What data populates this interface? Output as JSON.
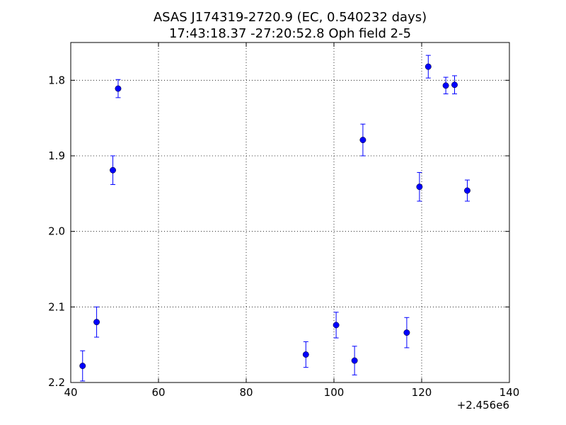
{
  "chart_data": {
    "type": "scatter",
    "title_line1": "ASAS J174319-2720.9 (EC, 0.540232 days)",
    "title_line2": "17:43:18.37 -27:20:52.8 Oph field 2-5",
    "xlabel": "",
    "ylabel": "",
    "x_offset_label": "+2.456e6",
    "xlim": [
      40,
      140
    ],
    "ylim": [
      1.75,
      2.2
    ],
    "y_inverted": true,
    "grid": true,
    "x_ticks": [
      40,
      60,
      80,
      100,
      120,
      140
    ],
    "x_tick_labels": [
      "40",
      "60",
      "80",
      "100",
      "120",
      "140"
    ],
    "y_ticks": [
      1.8,
      1.9,
      2.0,
      2.1,
      2.2
    ],
    "y_tick_labels": [
      "1.8",
      "1.9",
      "2.0",
      "2.1",
      "2.2"
    ],
    "marker_color": "#0000ff",
    "points": [
      {
        "x": 42.7,
        "y": 2.178,
        "err": 0.02
      },
      {
        "x": 45.9,
        "y": 2.12,
        "err": 0.02
      },
      {
        "x": 49.6,
        "y": 1.919,
        "err": 0.019
      },
      {
        "x": 50.8,
        "y": 1.811,
        "err": 0.012
      },
      {
        "x": 93.6,
        "y": 2.163,
        "err": 0.017
      },
      {
        "x": 100.5,
        "y": 2.124,
        "err": 0.017
      },
      {
        "x": 104.7,
        "y": 2.171,
        "err": 0.019
      },
      {
        "x": 106.6,
        "y": 1.879,
        "err": 0.021
      },
      {
        "x": 116.6,
        "y": 2.134,
        "err": 0.02
      },
      {
        "x": 119.5,
        "y": 1.941,
        "err": 0.019
      },
      {
        "x": 121.5,
        "y": 1.782,
        "err": 0.015
      },
      {
        "x": 125.5,
        "y": 1.807,
        "err": 0.011
      },
      {
        "x": 127.5,
        "y": 1.806,
        "err": 0.012
      },
      {
        "x": 130.4,
        "y": 1.946,
        "err": 0.014
      }
    ]
  }
}
